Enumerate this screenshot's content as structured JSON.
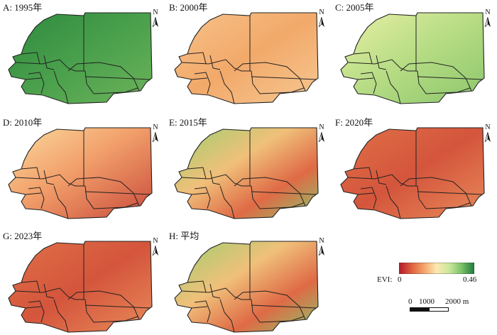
{
  "figure": {
    "colormap": [
      "#b2182b",
      "#e0603f",
      "#f4a46a",
      "#fde9b2",
      "#c9e79a",
      "#7bc168",
      "#1f7a3c"
    ],
    "panels": [
      {
        "label": "A: 1995年",
        "theme": "green"
      },
      {
        "label": "B: 2000年",
        "theme": "orange"
      },
      {
        "label": "C: 2005年",
        "theme": "lightgreen"
      },
      {
        "label": "D: 2010年",
        "theme": "salmon"
      },
      {
        "label": "E: 2015年",
        "theme": "mixed"
      },
      {
        "label": "F: 2020年",
        "theme": "red"
      },
      {
        "label": "G: 2023年",
        "theme": "red"
      },
      {
        "label": "H: 平均",
        "theme": "mixed"
      }
    ],
    "north_label": "N",
    "legend": {
      "title": "EVI:",
      "min": "0",
      "max": "0.46"
    },
    "scale": {
      "labels": [
        "0",
        "1000",
        "2000 m"
      ]
    }
  }
}
